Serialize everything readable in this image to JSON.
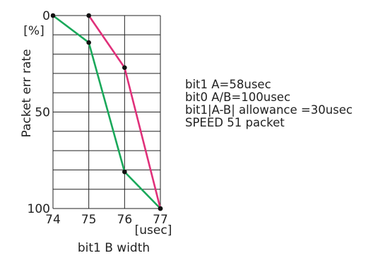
{
  "chart_data": {
    "type": "line",
    "x": [
      74,
      75,
      76,
      77
    ],
    "xlim": [
      74,
      77
    ],
    "ylim": [
      0,
      100
    ],
    "y_inverted": true,
    "x_ticks": [
      "74",
      "75",
      "76",
      "77"
    ],
    "y_ticks": [
      {
        "value": 0,
        "label": "0"
      },
      {
        "value": 50,
        "label": "50"
      },
      {
        "value": 100,
        "label": "100"
      }
    ],
    "xlabel": "bit1 B width",
    "xunit": "[usec]",
    "ylabel": "Packet err rate",
    "yunit": "[%]",
    "grid": true,
    "series": [
      {
        "color": "#1aa85a",
        "points": [
          [
            74,
            0
          ],
          [
            75,
            14
          ],
          [
            76,
            81
          ],
          [
            77,
            100
          ]
        ]
      },
      {
        "color": "#e0307a",
        "points": [
          [
            75,
            0
          ],
          [
            76,
            27
          ],
          [
            77,
            100
          ]
        ]
      }
    ],
    "notes": [
      "bit1 A=58usec",
      "bit0 A/B=100usec",
      "bit1|A-B| allowance =30usec",
      "SPEED 51 packet"
    ]
  }
}
